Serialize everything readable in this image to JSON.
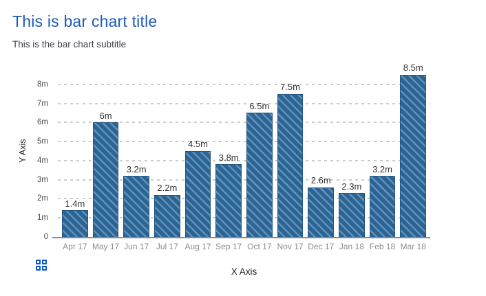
{
  "header": {
    "title": "This is bar chart title",
    "subtitle": "This is the bar chart subtitle"
  },
  "chart_data": {
    "type": "bar",
    "title": "This is bar chart title",
    "subtitle": "This is the bar chart subtitle",
    "xlabel": "X Axis",
    "ylabel": "Y Axis",
    "categories": [
      "Apr 17",
      "May 17",
      "Jun 17",
      "Jul 17",
      "Aug 17",
      "Sep 17",
      "Oct 17",
      "Nov 17",
      "Dec 17",
      "Jan 18",
      "Feb 18",
      "Mar 18"
    ],
    "values": [
      1.4,
      6,
      3.2,
      2.2,
      4.5,
      3.8,
      6.5,
      7.5,
      2.6,
      2.3,
      3.2,
      8.5
    ],
    "value_labels": [
      "1.4m",
      "6m",
      "3.2m",
      "2.2m",
      "4.5m",
      "3.8m",
      "6.5m",
      "7.5m",
      "2.6m",
      "2.3m",
      "3.2m",
      "8.5m"
    ],
    "unit": "m",
    "ytick_labels": [
      "0",
      "1m",
      "2m",
      "3m",
      "4m",
      "5m",
      "6m",
      "7m",
      "8m"
    ],
    "ytick_values": [
      0,
      1,
      2,
      3,
      4,
      5,
      6,
      7,
      8
    ],
    "ylim": [
      0,
      9
    ],
    "grid": "horizontal-dashed",
    "legend": "none",
    "bar_style": "diagonal-hatch"
  },
  "colors": {
    "title": "#1e5bb8",
    "subtitle": "#3e3e50",
    "bar_fill": "#2a6496",
    "bar_hatch_line": "#6390b3",
    "bar_border": "#23567f",
    "gridline": "#cbcbcb",
    "axis_line": "#8a8a8a",
    "x_tick_text": "#8c8c8c",
    "y_tick_text": "#474747",
    "axis_title_text": "#1c1c1c",
    "value_label_text": "#333333",
    "grid_icon": "#0b57d0"
  },
  "icons": {
    "grid_menu": "grid-2x2-icon"
  }
}
